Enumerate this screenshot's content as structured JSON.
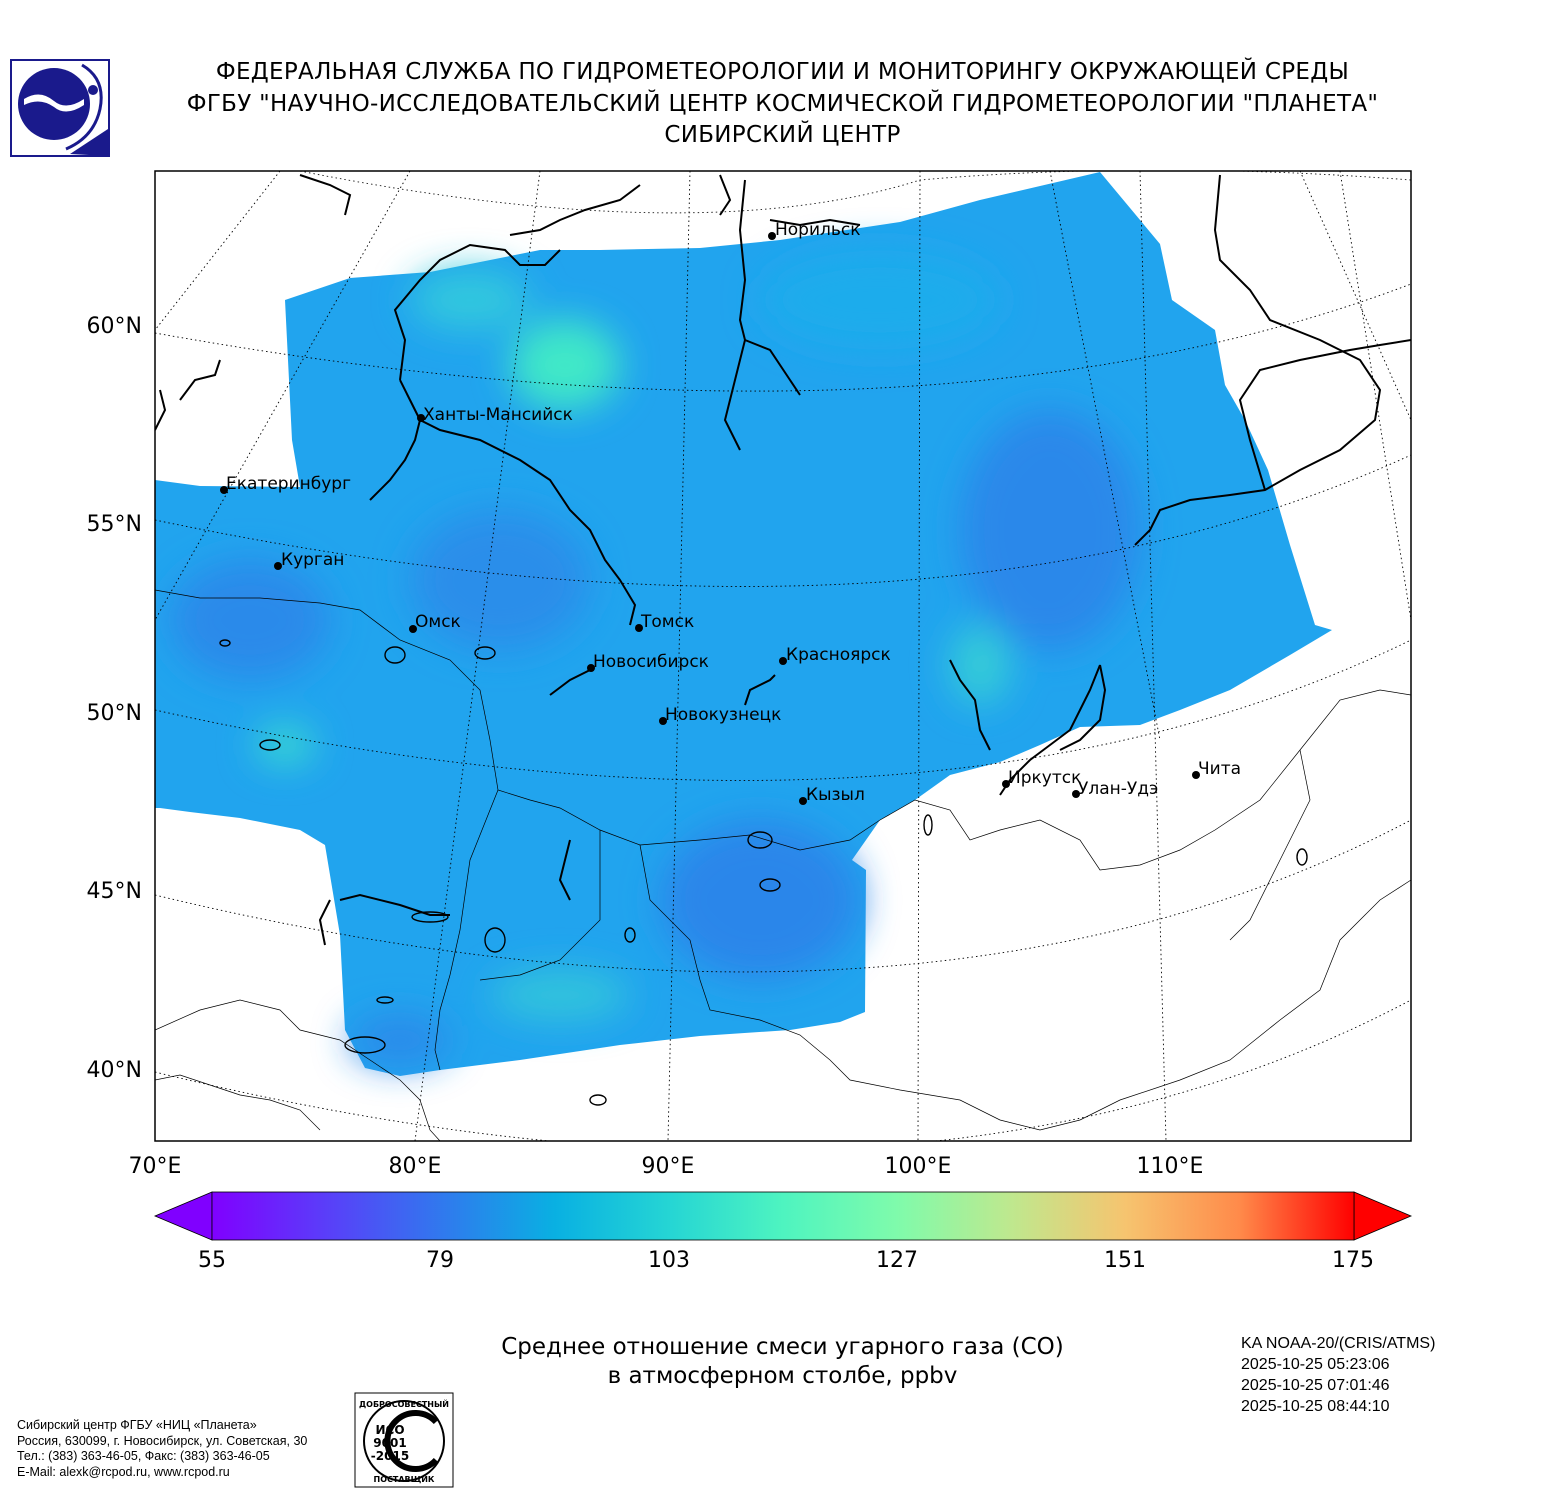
{
  "header": {
    "line1": "ФЕДЕРАЛЬНАЯ СЛУЖБА ПО ГИДРОМЕТЕОРОЛОГИИ И МОНИТОРИНГУ ОКРУЖАЮЩЕЙ СРЕДЫ",
    "line2": "ФГБУ \"НАУЧНО-ИССЛЕДОВАТЕЛЬСКИЙ ЦЕНТР КОСМИЧЕСКОЙ ГИДРОМЕТЕОРОЛОГИИ \"ПЛАНЕТА\"",
    "line3": "СИБИРСКИЙ ЦЕНТР"
  },
  "map": {
    "lat_labels": [
      "60°N",
      "55°N",
      "50°N",
      "45°N",
      "40°N"
    ],
    "lon_labels": [
      "70°E",
      "80°E",
      "90°E",
      "100°E",
      "110°E"
    ],
    "cities": [
      {
        "name": "Норильск"
      },
      {
        "name": "Ханты-Мансийск"
      },
      {
        "name": "Екатеринбург"
      },
      {
        "name": "Курган"
      },
      {
        "name": "Омск"
      },
      {
        "name": "Томск"
      },
      {
        "name": "Новосибирск"
      },
      {
        "name": "Красноярск"
      },
      {
        "name": "Новокузнецк"
      },
      {
        "name": "Иркутск"
      },
      {
        "name": "Улан-Удэ"
      },
      {
        "name": "Чита"
      },
      {
        "name": "Кызыл"
      }
    ],
    "field_colors": {
      "dominant": "#21a4ee",
      "low": "#2f86ea",
      "high": "#3fe0cc"
    }
  },
  "colorbar": {
    "ticks": [
      "55",
      "79",
      "103",
      "127",
      "151",
      "175"
    ],
    "min": 55,
    "max": 175,
    "extend": "both",
    "colormap": "rainbow"
  },
  "caption": {
    "line1": "Среднее отношение смеси угарного газа (CO)",
    "line2": "в атмосферном столбе, ppbv"
  },
  "satellite": {
    "name": "KA NOAA-20/(CRIS/ATMS)",
    "times": [
      "2025-10-25 05:23:06",
      "2025-10-25 07:01:46",
      "2025-10-25 08:44:10"
    ]
  },
  "footer": {
    "org": "Сибирский центр ФГБУ «НИЦ «Планета»",
    "address": "Россия, 630099, г. Новосибирск, ул. Советская, 30",
    "phone": "Тел.: (383) 363-46-05, Факс: (383) 363-46-05",
    "email": "E-Mail: alexk@rcpod.ru, www.rcpod.ru"
  },
  "iso_badge": {
    "top_text": "ДОБРОСОВЕСТНЫЙ",
    "line1": "ИСО",
    "line2": "9001",
    "line3": "-2015",
    "bottom_text": "ПОСТАВЩИК"
  }
}
